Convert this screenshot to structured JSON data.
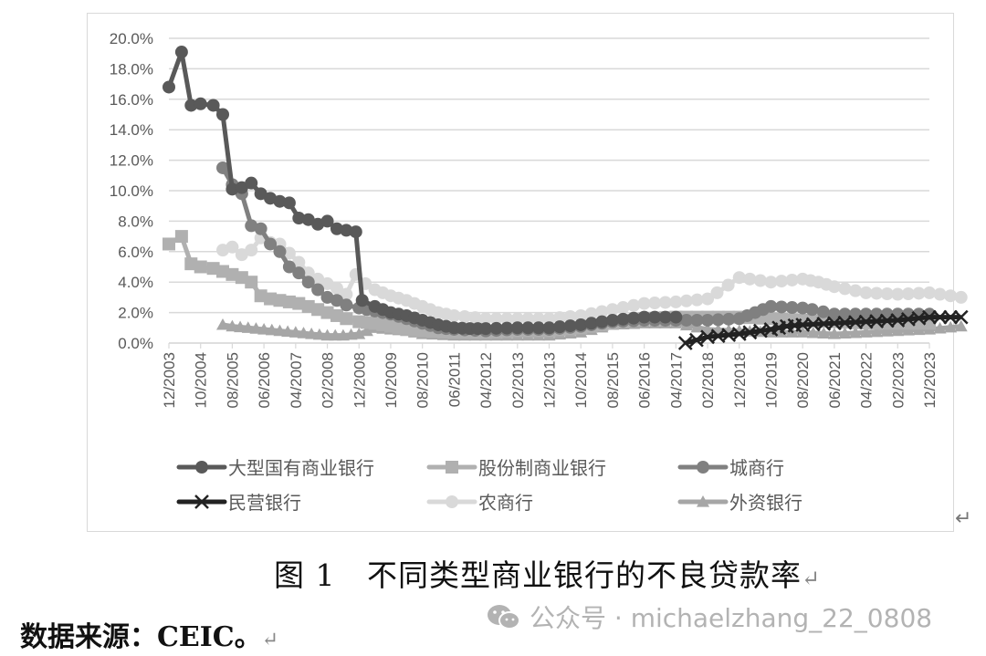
{
  "chart_data": {
    "type": "line",
    "title": "",
    "xlabel": "",
    "ylabel": "",
    "ylim": [
      0,
      0.2
    ],
    "yticks": [
      "0.0%",
      "2.0%",
      "4.0%",
      "6.0%",
      "8.0%",
      "10.0%",
      "12.0%",
      "14.0%",
      "16.0%",
      "18.0%",
      "20.0%"
    ],
    "xtick_labels": [
      "12/2003",
      "10/2004",
      "08/2005",
      "06/2006",
      "04/2007",
      "02/2008",
      "12/2008",
      "10/2009",
      "08/2010",
      "06/2011",
      "04/2012",
      "02/2013",
      "12/2013",
      "10/2014",
      "08/2015",
      "06/2016",
      "04/2017",
      "02/2018",
      "12/2018",
      "10/2019",
      "08/2020",
      "06/2021",
      "04/2022",
      "02/2023",
      "12/2023"
    ],
    "grid": true,
    "legend_position": "bottom",
    "series": [
      {
        "name": "大型国有商业银行",
        "color": "#595959",
        "marker": "circle",
        "points": [
          [
            0,
            16.8
          ],
          [
            0.4,
            19.1
          ],
          [
            0.7,
            15.6
          ],
          [
            1.0,
            15.7
          ],
          [
            1.4,
            15.6
          ],
          [
            1.7,
            15.0
          ],
          [
            2.0,
            10.1
          ],
          [
            2.3,
            10.2
          ],
          [
            2.6,
            10.5
          ],
          [
            2.9,
            9.8
          ],
          [
            3.2,
            9.5
          ],
          [
            3.5,
            9.3
          ],
          [
            3.8,
            9.2
          ],
          [
            4.1,
            8.2
          ],
          [
            4.4,
            8.1
          ],
          [
            4.7,
            7.8
          ],
          [
            5.0,
            8.0
          ],
          [
            5.3,
            7.5
          ],
          [
            5.6,
            7.4
          ],
          [
            5.9,
            7.3
          ],
          [
            6.1,
            2.8
          ],
          [
            6.5,
            2.4
          ],
          [
            7.0,
            2.0
          ],
          [
            7.5,
            1.8
          ],
          [
            8.0,
            1.5
          ],
          [
            8.5,
            1.2
          ],
          [
            9.0,
            1.0
          ],
          [
            9.5,
            0.95
          ],
          [
            10.0,
            0.95
          ],
          [
            11.0,
            1.0
          ],
          [
            12.0,
            1.0
          ],
          [
            13.0,
            1.2
          ],
          [
            14.0,
            1.5
          ],
          [
            15.0,
            1.7
          ],
          [
            16.0,
            1.7
          ]
        ]
      },
      {
        "name": "股份制商业银行",
        "color": "#b0b0b0",
        "marker": "square",
        "points": [
          [
            0,
            6.5
          ],
          [
            0.4,
            7.0
          ],
          [
            0.7,
            5.2
          ],
          [
            1.0,
            5.0
          ],
          [
            1.4,
            4.9
          ],
          [
            1.7,
            4.7
          ],
          [
            2.0,
            4.5
          ],
          [
            2.3,
            4.3
          ],
          [
            2.6,
            4.0
          ],
          [
            2.9,
            3.1
          ],
          [
            3.2,
            2.9
          ],
          [
            3.5,
            2.8
          ],
          [
            3.8,
            2.7
          ],
          [
            4.1,
            2.6
          ],
          [
            4.4,
            2.4
          ],
          [
            4.7,
            2.2
          ],
          [
            5.0,
            2.0
          ],
          [
            5.3,
            1.8
          ],
          [
            5.6,
            1.6
          ],
          [
            6.0,
            1.4
          ],
          [
            6.5,
            1.3
          ],
          [
            7.0,
            1.1
          ],
          [
            7.5,
            0.9
          ],
          [
            8.0,
            0.8
          ],
          [
            9.0,
            0.7
          ],
          [
            10.0,
            0.7
          ],
          [
            11.0,
            0.8
          ],
          [
            12.0,
            0.8
          ],
          [
            13.0,
            1.0
          ],
          [
            14.0,
            1.3
          ],
          [
            15.0,
            1.6
          ],
          [
            16.0,
            1.7
          ],
          [
            17.0,
            1.7
          ],
          [
            18.0,
            1.7
          ],
          [
            19.0,
            1.6
          ],
          [
            20.0,
            1.5
          ],
          [
            21.0,
            1.4
          ],
          [
            22.0,
            1.3
          ],
          [
            23.0,
            1.3
          ],
          [
            24.0,
            1.3
          ]
        ]
      },
      {
        "name": "城商行",
        "color": "#808080",
        "marker": "circle",
        "points": [
          [
            1.7,
            11.5
          ],
          [
            2.0,
            10.4
          ],
          [
            2.3,
            9.8
          ],
          [
            2.6,
            7.7
          ],
          [
            2.9,
            7.5
          ],
          [
            3.2,
            6.5
          ],
          [
            3.5,
            6.0
          ],
          [
            3.8,
            5.0
          ],
          [
            4.1,
            4.6
          ],
          [
            4.4,
            4.0
          ],
          [
            4.7,
            3.5
          ],
          [
            5.0,
            3.0
          ],
          [
            5.3,
            2.8
          ],
          [
            5.6,
            2.5
          ],
          [
            6.0,
            2.3
          ],
          [
            6.5,
            2.1
          ],
          [
            7.0,
            1.9
          ],
          [
            7.5,
            1.6
          ],
          [
            8.0,
            1.3
          ],
          [
            8.5,
            1.0
          ],
          [
            9.0,
            0.9
          ],
          [
            10.0,
            0.8
          ],
          [
            11.0,
            0.9
          ],
          [
            12.0,
            0.9
          ],
          [
            13.0,
            1.1
          ],
          [
            14.0,
            1.4
          ],
          [
            15.0,
            1.5
          ],
          [
            16.0,
            1.5
          ],
          [
            17.0,
            1.5
          ],
          [
            18.0,
            1.6
          ],
          [
            18.5,
            2.0
          ],
          [
            19.0,
            2.4
          ],
          [
            20.0,
            2.3
          ],
          [
            20.3,
            2.2
          ],
          [
            21.0,
            1.9
          ],
          [
            22.0,
            1.9
          ],
          [
            23.0,
            1.9
          ],
          [
            24.0,
            1.9
          ]
        ]
      },
      {
        "name": "民营银行",
        "color": "#222222",
        "marker": "x",
        "points": [
          [
            16.3,
            0.0
          ],
          [
            17.0,
            0.4
          ],
          [
            18.0,
            0.6
          ],
          [
            19.0,
            0.9
          ],
          [
            19.5,
            1.1
          ],
          [
            20.0,
            1.2
          ],
          [
            21.0,
            1.3
          ],
          [
            22.0,
            1.4
          ],
          [
            23.0,
            1.5
          ],
          [
            24.0,
            1.7
          ],
          [
            25.0,
            1.7
          ]
        ]
      },
      {
        "name": "农商行",
        "color": "#d9d9d9",
        "marker": "circle",
        "points": [
          [
            1.7,
            6.1
          ],
          [
            2.0,
            6.3
          ],
          [
            2.3,
            5.8
          ],
          [
            2.6,
            6.1
          ],
          [
            2.9,
            6.9
          ],
          [
            3.2,
            6.6
          ],
          [
            3.5,
            6.5
          ],
          [
            3.8,
            5.9
          ],
          [
            4.1,
            5.3
          ],
          [
            4.4,
            4.6
          ],
          [
            4.7,
            4.2
          ],
          [
            5.0,
            3.9
          ],
          [
            5.3,
            3.6
          ],
          [
            5.6,
            3.2
          ],
          [
            5.9,
            4.5
          ],
          [
            6.2,
            3.9
          ],
          [
            6.5,
            3.5
          ],
          [
            7.0,
            3.1
          ],
          [
            7.5,
            2.8
          ],
          [
            8.0,
            2.4
          ],
          [
            8.5,
            2.0
          ],
          [
            9.0,
            1.8
          ],
          [
            10.0,
            1.6
          ],
          [
            11.0,
            1.6
          ],
          [
            12.0,
            1.6
          ],
          [
            13.0,
            1.8
          ],
          [
            14.0,
            2.2
          ],
          [
            15.0,
            2.6
          ],
          [
            16.0,
            2.7
          ],
          [
            17.0,
            2.9
          ],
          [
            17.3,
            3.3
          ],
          [
            18.0,
            4.3
          ],
          [
            19.0,
            4.0
          ],
          [
            20.0,
            4.2
          ],
          [
            20.5,
            4.0
          ],
          [
            21.0,
            3.7
          ],
          [
            22.0,
            3.3
          ],
          [
            23.0,
            3.2
          ],
          [
            24.0,
            3.3
          ],
          [
            25.0,
            3.0
          ]
        ]
      },
      {
        "name": "外资银行",
        "color": "#a6a6a6",
        "marker": "triangle",
        "points": [
          [
            1.7,
            1.2
          ],
          [
            2.0,
            1.1
          ],
          [
            2.5,
            1.0
          ],
          [
            3.0,
            0.9
          ],
          [
            3.5,
            0.8
          ],
          [
            4.0,
            0.7
          ],
          [
            4.5,
            0.6
          ],
          [
            5.0,
            0.5
          ],
          [
            5.5,
            0.5
          ],
          [
            6.0,
            0.6
          ],
          [
            6.5,
            1.0
          ],
          [
            7.0,
            0.9
          ],
          [
            7.5,
            0.8
          ],
          [
            8.0,
            0.6
          ],
          [
            9.0,
            0.5
          ],
          [
            10.0,
            0.5
          ],
          [
            11.0,
            0.5
          ],
          [
            12.0,
            0.5
          ],
          [
            13.0,
            0.7
          ],
          [
            14.0,
            1.2
          ],
          [
            15.0,
            1.3
          ],
          [
            16.0,
            1.3
          ],
          [
            17.0,
            0.9
          ],
          [
            18.0,
            0.8
          ],
          [
            19.0,
            0.7
          ],
          [
            20.0,
            0.7
          ],
          [
            21.0,
            0.6
          ],
          [
            22.0,
            0.7
          ],
          [
            23.0,
            0.8
          ],
          [
            24.0,
            0.9
          ],
          [
            25.0,
            1.1
          ]
        ]
      }
    ]
  },
  "legend": {
    "row1": [
      "大型国有商业银行",
      "股份制商业银行",
      "城商行"
    ],
    "row2": [
      "民营银行",
      "农商行",
      "外资银行"
    ]
  },
  "caption": {
    "figure_label": "图 1",
    "title": "不同类型商业银行的不良贷款率",
    "return_mark": "↵"
  },
  "source": {
    "text": "数据来源：CEIC。",
    "return_mark": "↵"
  },
  "watermark": {
    "text": "公众号 · michaelzhang_22_0808"
  },
  "frame_return_mark": "↵"
}
